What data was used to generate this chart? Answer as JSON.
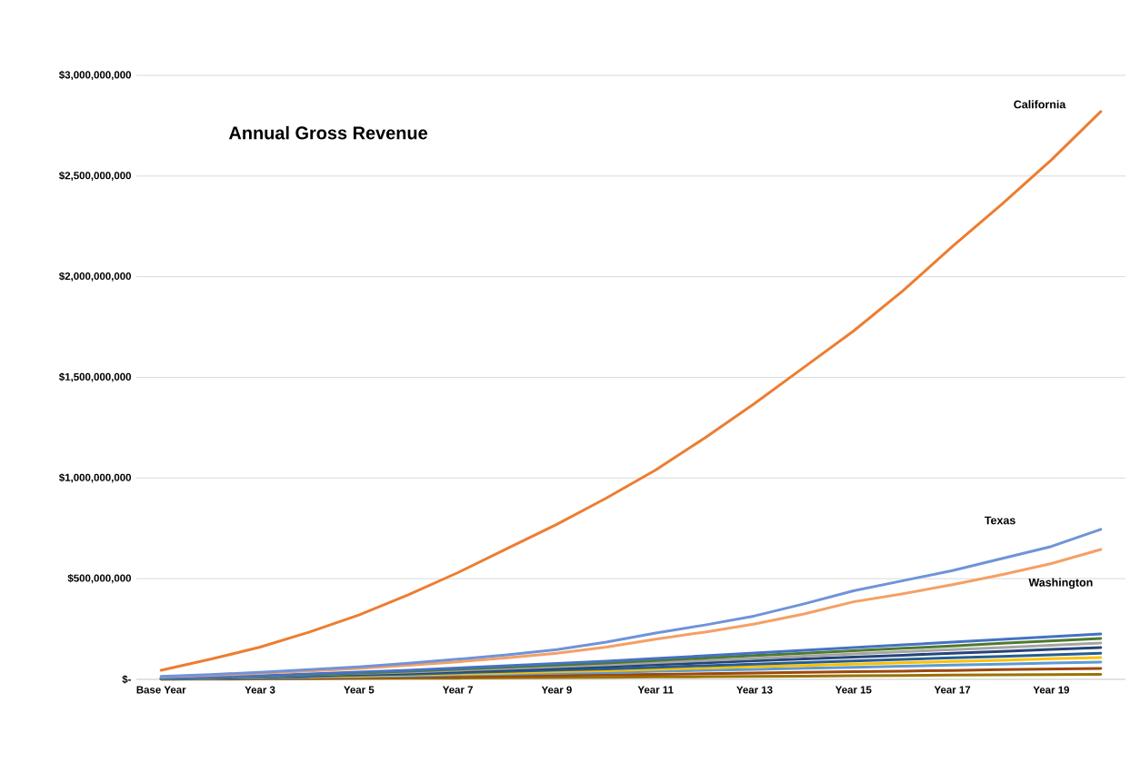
{
  "chart_data": {
    "type": "line",
    "title": "Annual Gross Revenue",
    "categories": [
      "Base Year",
      null,
      "Year 3",
      null,
      "Year 5",
      null,
      "Year 7",
      null,
      "Year 9",
      null,
      "Year 11",
      null,
      "Year 13",
      null,
      "Year 15",
      null,
      "Year 17",
      null,
      "Year 19",
      null
    ],
    "series": [
      {
        "name": "California",
        "color": "#ed7d31",
        "values": [
          45000000.0,
          100000000.0,
          160000000.0,
          235000000.0,
          320000000.0,
          420000000.0,
          530000000.0,
          650000000.0,
          770000000.0,
          900000000.0,
          1040000000.0,
          1200000000.0,
          1370000000.0,
          1550000000.0,
          1730000000.0,
          1930000000.0,
          2150000000.0,
          2360000000.0,
          2580000000.0,
          2820000000.0
        ]
      },
      {
        "name": "Texas",
        "color": "#6f93d8",
        "values": [
          15000000.0,
          24000000.0,
          35000000.0,
          48000000.0,
          62000000.0,
          80000000.0,
          100000000.0,
          122000000.0,
          148000000.0,
          185000000.0,
          230000000.0,
          270000000.0,
          315000000.0,
          375000000.0,
          440000000.0,
          490000000.0,
          540000000.0,
          600000000.0,
          660000000.0,
          745000000.0
        ]
      },
      {
        "name": "Washington",
        "color": "#f4a065",
        "values": [
          12000000.0,
          20000000.0,
          30000000.0,
          42000000.0,
          54000000.0,
          70000000.0,
          87000000.0,
          107000000.0,
          130000000.0,
          160000000.0,
          200000000.0,
          235000000.0,
          275000000.0,
          325000000.0,
          385000000.0,
          425000000.0,
          470000000.0,
          520000000.0,
          575000000.0,
          645000000.0
        ]
      },
      {
        "color": "#4472c4",
        "values": [
          5000000.0,
          11000000.0,
          18000000.0,
          27000000.0,
          36000000.0,
          45000000.0,
          56000000.0,
          68000000.0,
          79000000.0,
          90000000.0,
          104000000.0,
          117000000.0,
          131000000.0,
          144000000.0,
          158000000.0,
          171000000.0,
          185000000.0,
          198000000.0,
          212000000.0,
          225000000.0
        ]
      },
      {
        "color": "#4e7a2e",
        "values": [
          4000000.0,
          10000000.0,
          16000000.0,
          24000000.0,
          32000000.0,
          41000000.0,
          51000000.0,
          61000000.0,
          71000000.0,
          81000000.0,
          93000000.0,
          106000000.0,
          118000000.0,
          130000000.0,
          142000000.0,
          154000000.0,
          166000000.0,
          179000000.0,
          191000000.0,
          203000000.0
        ]
      },
      {
        "color": "#a5a5a5",
        "values": [
          4000000.0,
          9000000.0,
          14000000.0,
          22000000.0,
          29000000.0,
          36000000.0,
          45000000.0,
          54000000.0,
          63000000.0,
          72000000.0,
          83000000.0,
          94000000.0,
          104000000.0,
          115000000.0,
          126000000.0,
          137000000.0,
          148000000.0,
          158000000.0,
          169000000.0,
          180000000.0
        ]
      },
      {
        "color": "#264478",
        "values": [
          3000000.0,
          8000000.0,
          13000000.0,
          19000000.0,
          25000000.0,
          32000000.0,
          40000000.0,
          47000000.0,
          55000000.0,
          63000000.0,
          73000000.0,
          82000000.0,
          92000000.0,
          101000000.0,
          111000000.0,
          120000000.0,
          130000000.0,
          139000000.0,
          149000000.0,
          158000000.0
        ]
      },
      {
        "color": "#255e91",
        "values": [
          3000000.0,
          7000000.0,
          10000000.0,
          16000000.0,
          21000000.0,
          26000000.0,
          33000000.0,
          39000000.0,
          46000000.0,
          52000000.0,
          60000000.0,
          68000000.0,
          75000000.0,
          83000000.0,
          91000000.0,
          99000000.0,
          107000000.0,
          114000000.0,
          122000000.0,
          130000000.0
        ]
      },
      {
        "color": "#ffc000",
        "values": [
          null,
          null,
          null,
          13000000.0,
          17000000.0,
          22000000.0,
          27000000.0,
          32000000.0,
          38000000.0,
          43000000.0,
          50000000.0,
          56000000.0,
          63000000.0,
          69000000.0,
          76000000.0,
          82000000.0,
          89000000.0,
          95000000.0,
          102000000.0,
          108000000.0
        ]
      },
      {
        "color": "#5b9bd5",
        "values": [
          2000000.0,
          4000000.0,
          7000000.0,
          10000000.0,
          14000000.0,
          17000000.0,
          22000000.0,
          26000000.0,
          30000000.0,
          34000000.0,
          40000000.0,
          45000000.0,
          50000000.0,
          55000000.0,
          60000000.0,
          65000000.0,
          71000000.0,
          76000000.0,
          81000000.0,
          86000000.0
        ]
      },
      {
        "color": "#9e480e",
        "values": [
          1000000.0,
          3000000.0,
          4000000.0,
          6000000.0,
          9000000.0,
          11000000.0,
          14000000.0,
          16000000.0,
          19000000.0,
          22000000.0,
          25000000.0,
          28000000.0,
          31000000.0,
          35000000.0,
          38000000.0,
          41000000.0,
          44000000.0,
          48000000.0,
          51000000.0,
          54000000.0
        ]
      },
      {
        "color": "#997300",
        "values": [
          1000000.0,
          1000000.0,
          2000000.0,
          3000000.0,
          4000000.0,
          5000000.0,
          6000000.0,
          8000000.0,
          9000000.0,
          10000000.0,
          12000000.0,
          13000000.0,
          15000000.0,
          16000000.0,
          18000000.0,
          19000000.0,
          21000000.0,
          22000000.0,
          24000000.0,
          25000000.0
        ]
      }
    ],
    "ylim": [
      0,
      3000000000
    ],
    "yticks": [
      {
        "value": 0,
        "label": "$-"
      },
      {
        "value": 500000000,
        "label": "$500,000,000"
      },
      {
        "value": 1000000000,
        "label": "$1,000,000,000"
      },
      {
        "value": 1500000000,
        "label": "$1,500,000,000"
      },
      {
        "value": 2000000000,
        "label": "$2,000,000,000"
      },
      {
        "value": 2500000000,
        "label": "$2,500,000,000"
      },
      {
        "value": 3000000000,
        "label": "$3,000,000,000"
      }
    ],
    "grid": "y",
    "legend": false,
    "marker": "none",
    "line_style": "solid"
  }
}
